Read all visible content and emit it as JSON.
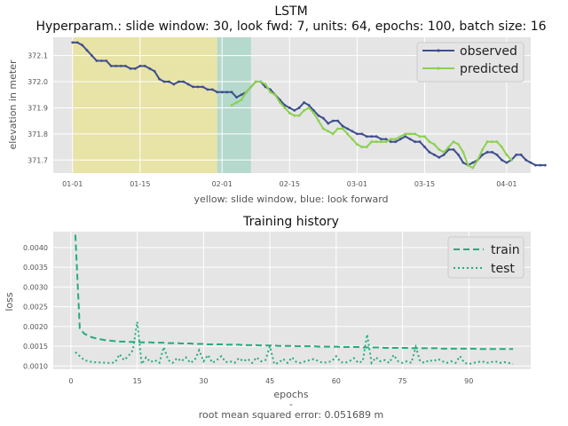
{
  "chart_data": [
    {
      "type": "line",
      "title": "LSTM",
      "subtitle": "Hyperparam.: slide window: 30, look fwd: 7, units: 64, epochs: 100, batch size: 16",
      "xlabel": "yellow: slide window, blue: look forward",
      "ylabel": "elevation in meter",
      "xlim": [
        "2021-12-28",
        "2022-04-06"
      ],
      "ylim": [
        371.65,
        372.17
      ],
      "x_ticks": [
        "2022-01-01",
        "2022-01-15",
        "2022-02-01",
        "2022-02-15",
        "2022-03-01",
        "2022-03-15",
        "2022-04-01"
      ],
      "x_tick_labels": [
        "01-01",
        "01-15",
        "02-01",
        "02-15",
        "03-01",
        "03-15",
        "04-01"
      ],
      "y_ticks": [
        371.7,
        371.8,
        371.9,
        372.0,
        372.1
      ],
      "y_tick_labels": [
        "371.7",
        "371.8",
        "371.9",
        "372.0",
        "372.1"
      ],
      "grid": true,
      "legend": "top-right",
      "shaded_regions": [
        {
          "start": "2022-01-01",
          "end": "2022-01-31",
          "color": "#e8e3a6",
          "meaning": "slide window"
        },
        {
          "start": "2022-01-31",
          "end": "2022-02-07",
          "color": "#b5d9cd",
          "meaning": "look forward"
        }
      ],
      "series": [
        {
          "name": "observed",
          "color": "#3e4f8e",
          "start_date": "2022-01-01",
          "values": [
            372.15,
            372.15,
            372.14,
            372.12,
            372.1,
            372.08,
            372.08,
            372.08,
            372.06,
            372.06,
            372.06,
            372.06,
            372.05,
            372.05,
            372.06,
            372.06,
            372.05,
            372.04,
            372.01,
            372.0,
            372.0,
            371.99,
            372.0,
            372.0,
            371.99,
            371.98,
            371.98,
            371.98,
            371.97,
            371.97,
            371.96,
            371.96,
            371.96,
            371.96,
            371.94,
            371.95,
            371.96,
            371.98,
            372.0,
            372.0,
            371.98,
            371.97,
            371.95,
            371.93,
            371.91,
            371.9,
            371.89,
            371.9,
            371.92,
            371.91,
            371.89,
            371.87,
            371.86,
            371.84,
            371.85,
            371.85,
            371.83,
            371.82,
            371.81,
            371.8,
            371.8,
            371.79,
            371.79,
            371.79,
            371.78,
            371.78,
            371.77,
            371.77,
            371.78,
            371.79,
            371.78,
            371.77,
            371.77,
            371.75,
            371.73,
            371.72,
            371.71,
            371.72,
            371.74,
            371.74,
            371.72,
            371.69,
            371.68,
            371.69,
            371.7,
            371.72,
            371.73,
            371.73,
            371.72,
            371.7,
            371.69,
            371.7,
            371.72,
            371.72,
            371.7,
            371.69,
            371.68,
            371.68,
            371.68
          ]
        },
        {
          "name": "predicted",
          "color": "#8cd04e",
          "start_date": "2022-02-03",
          "values": [
            371.91,
            371.92,
            371.93,
            371.96,
            371.98,
            372.0,
            372.0,
            371.99,
            371.96,
            371.95,
            371.92,
            371.9,
            371.88,
            371.87,
            371.87,
            371.89,
            371.9,
            371.88,
            371.85,
            371.82,
            371.81,
            371.8,
            371.82,
            371.82,
            371.8,
            371.78,
            371.76,
            371.75,
            371.75,
            371.77,
            371.77,
            371.77,
            371.77,
            371.78,
            371.78,
            371.79,
            371.8,
            371.8,
            371.8,
            371.79,
            371.79,
            371.77,
            371.76,
            371.74,
            371.73,
            371.75,
            371.77,
            371.76,
            371.73,
            371.68,
            371.67,
            371.7,
            371.74,
            371.77,
            371.77,
            371.77,
            371.75,
            371.72,
            371.7
          ]
        }
      ]
    },
    {
      "type": "line",
      "title": "Training history",
      "xlabel": "epochs",
      "ylabel": "loss",
      "xlim": [
        -4,
        104
      ],
      "ylim": [
        0.00092,
        0.0044
      ],
      "x_ticks": [
        0,
        15,
        30,
        45,
        60,
        75,
        90
      ],
      "y_ticks": [
        0.001,
        0.0015,
        0.002,
        0.0025,
        0.003,
        0.0035,
        0.004
      ],
      "y_tick_labels": [
        "0.0010",
        "0.0015",
        "0.0020",
        "0.0025",
        "0.0030",
        "0.0035",
        "0.0040"
      ],
      "grid": true,
      "legend": "top-right",
      "series": [
        {
          "name": "train",
          "color": "#24ab80",
          "dash": "dashed",
          "x_start": 1,
          "values": [
            0.00432,
            0.00195,
            0.00182,
            0.00176,
            0.00172,
            0.00169,
            0.00167,
            0.00165,
            0.00164,
            0.00163,
            0.00162,
            0.00162,
            0.00161,
            0.00161,
            0.00161,
            0.0016,
            0.0016,
            0.0016,
            0.00159,
            0.00159,
            0.00159,
            0.00158,
            0.00158,
            0.00158,
            0.00157,
            0.00157,
            0.00157,
            0.00156,
            0.00156,
            0.00156,
            0.00155,
            0.00155,
            0.00155,
            0.00155,
            0.00154,
            0.00154,
            0.00154,
            0.00154,
            0.00153,
            0.00153,
            0.00153,
            0.00153,
            0.00152,
            0.00152,
            0.00152,
            0.00152,
            0.00151,
            0.00151,
            0.00151,
            0.00151,
            0.0015,
            0.0015,
            0.0015,
            0.0015,
            0.0015,
            0.00149,
            0.00149,
            0.00149,
            0.00149,
            0.00149,
            0.00148,
            0.00148,
            0.00148,
            0.00148,
            0.00148,
            0.00147,
            0.00147,
            0.00147,
            0.00147,
            0.00147,
            0.00146,
            0.00146,
            0.00146,
            0.00146,
            0.00146,
            0.00146,
            0.00145,
            0.00145,
            0.00145,
            0.00145,
            0.00145,
            0.00145,
            0.00145,
            0.00144,
            0.00144,
            0.00144,
            0.00144,
            0.00144,
            0.00144,
            0.00144,
            0.00144,
            0.00143,
            0.00143,
            0.00143,
            0.00143,
            0.00143,
            0.00143,
            0.00143,
            0.00143,
            0.00143
          ]
        },
        {
          "name": "test",
          "color": "#24ab80",
          "dash": "dotted",
          "x_start": 1,
          "values": [
            0.00135,
            0.00125,
            0.00115,
            0.00112,
            0.0011,
            0.00109,
            0.00109,
            0.00108,
            0.00108,
            0.00109,
            0.0013,
            0.00115,
            0.00125,
            0.0014,
            0.00212,
            0.00105,
            0.00122,
            0.0011,
            0.00115,
            0.00108,
            0.00148,
            0.00115,
            0.00108,
            0.0012,
            0.00112,
            0.00122,
            0.00108,
            0.00115,
            0.0014,
            0.00112,
            0.00128,
            0.00108,
            0.00115,
            0.00125,
            0.0011,
            0.00112,
            0.00108,
            0.0012,
            0.00112,
            0.00118,
            0.00108,
            0.00122,
            0.00112,
            0.00115,
            0.0015,
            0.00105,
            0.00108,
            0.00118,
            0.00108,
            0.00122,
            0.0011,
            0.00108,
            0.00112,
            0.00115,
            0.00118,
            0.00112,
            0.00108,
            0.0011,
            0.00112,
            0.00125,
            0.0011,
            0.00108,
            0.00112,
            0.0012,
            0.00108,
            0.00112,
            0.0018,
            0.00108,
            0.00122,
            0.00112,
            0.00115,
            0.00108,
            0.00128,
            0.00112,
            0.00108,
            0.00112,
            0.00108,
            0.00148,
            0.00112,
            0.00108,
            0.00115,
            0.00112,
            0.00118,
            0.00112,
            0.00108,
            0.00112,
            0.00108,
            0.00125,
            0.00108,
            0.00105,
            0.00108,
            0.0011,
            0.00112,
            0.00108,
            0.0011,
            0.00112,
            0.00108,
            0.0011,
            0.00108,
            0.00105
          ]
        }
      ]
    }
  ],
  "footer": {
    "dash": "-",
    "rmse": "root mean squared error: 0.051689 m"
  }
}
